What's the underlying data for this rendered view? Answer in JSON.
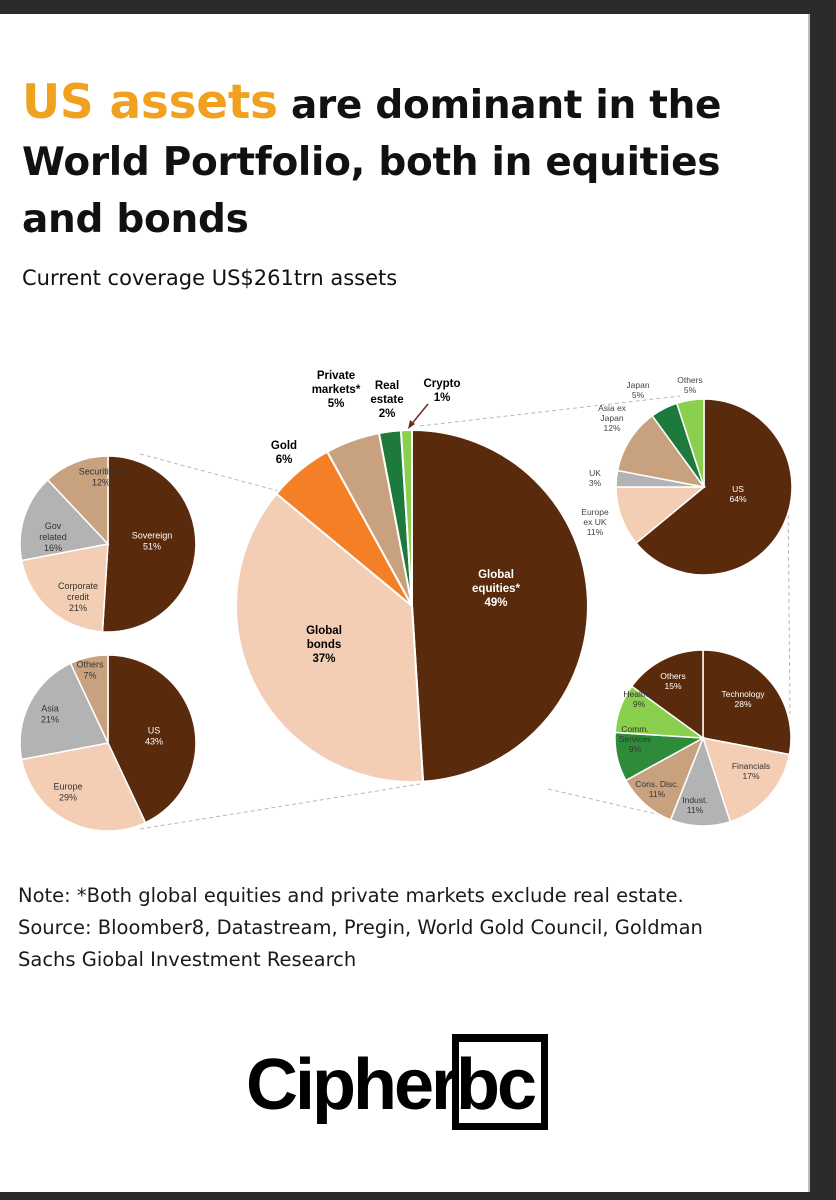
{
  "title": {
    "highlight": "US assets",
    "rest": " are dominant in the World Portfolio, both in equities and bonds"
  },
  "subtitle": "Current coverage US$261trn assets",
  "colors": {
    "accent": "#f0a11f",
    "dark_brown": "#5a2a0c",
    "light_peach": "#f3cdb4",
    "tan": "#c8a27f",
    "grey": "#b3b3b3",
    "orange": "#f47f27",
    "dark_green": "#1e7a3c",
    "light_green": "#8bcf4e",
    "mid_green": "#2e8b3a"
  },
  "chart_data": [
    {
      "type": "pie",
      "id": "main",
      "slices": [
        {
          "label": [
            "Global",
            "equities*"
          ],
          "value": 49,
          "value_label": "49%",
          "color": "#5a2a0c"
        },
        {
          "label": [
            "Global",
            "bonds"
          ],
          "value": 37,
          "value_label": "37%",
          "color": "#f3cdb4"
        },
        {
          "label": [
            "Gold"
          ],
          "value": 6,
          "value_label": "6%",
          "color": "#f47f27"
        },
        {
          "label": [
            "Private",
            "markets*"
          ],
          "value": 5,
          "value_label": "5%",
          "color": "#c8a27f"
        },
        {
          "label": [
            "Real",
            "estate"
          ],
          "value": 2,
          "value_label": "2%",
          "color": "#1e7a3c"
        },
        {
          "label": [
            "Crypto"
          ],
          "value": 1,
          "value_label": "1%",
          "color": "#8bcf4e"
        }
      ]
    },
    {
      "type": "pie",
      "id": "bonds-by-type",
      "slices": [
        {
          "label": [
            "Sovereign"
          ],
          "value": 51,
          "value_label": "51%",
          "color": "#5a2a0c"
        },
        {
          "label": [
            "Corporate",
            "credit"
          ],
          "value": 21,
          "value_label": "21%",
          "color": "#f3cdb4"
        },
        {
          "label": [
            "Gov",
            "related"
          ],
          "value": 16,
          "value_label": "16%",
          "color": "#b3b3b3"
        },
        {
          "label": [
            "Securitised"
          ],
          "value": 12,
          "value_label": "12%",
          "color": "#c8a27f"
        }
      ]
    },
    {
      "type": "pie",
      "id": "bonds-by-region",
      "slices": [
        {
          "label": [
            "US"
          ],
          "value": 43,
          "value_label": "43%",
          "color": "#5a2a0c"
        },
        {
          "label": [
            "Europe"
          ],
          "value": 29,
          "value_label": "29%",
          "color": "#f3cdb4"
        },
        {
          "label": [
            "Asia"
          ],
          "value": 21,
          "value_label": "21%",
          "color": "#b3b3b3"
        },
        {
          "label": [
            "Others"
          ],
          "value": 7,
          "value_label": "7%",
          "color": "#c8a27f"
        }
      ]
    },
    {
      "type": "pie",
      "id": "equities-by-region",
      "slices": [
        {
          "label": [
            "US"
          ],
          "value": 64,
          "value_label": "64%",
          "color": "#5a2a0c"
        },
        {
          "label": [
            "Europe",
            "ex UK"
          ],
          "value": 11,
          "value_label": "11%",
          "color": "#f3cdb4"
        },
        {
          "label": [
            "UK"
          ],
          "value": 3,
          "value_label": "3%",
          "color": "#b3b3b3"
        },
        {
          "label": [
            "Asia ex",
            "Japan"
          ],
          "value": 12,
          "value_label": "12%",
          "color": "#c8a27f"
        },
        {
          "label": [
            "Japan"
          ],
          "value": 5,
          "value_label": "5%",
          "color": "#1e7a3c"
        },
        {
          "label": [
            "Others"
          ],
          "value": 5,
          "value_label": "5%",
          "color": "#8bcf4e"
        }
      ]
    },
    {
      "type": "pie",
      "id": "equities-by-sector",
      "slices": [
        {
          "label": [
            "Technology"
          ],
          "value": 28,
          "value_label": "28%",
          "color": "#5a2a0c"
        },
        {
          "label": [
            "Financials"
          ],
          "value": 17,
          "value_label": "17%",
          "color": "#f3cdb4"
        },
        {
          "label": [
            "Indust."
          ],
          "value": 11,
          "value_label": "11%",
          "color": "#b3b3b3"
        },
        {
          "label": [
            "Cons. Disc."
          ],
          "value": 11,
          "value_label": "11%",
          "color": "#c8a27f"
        },
        {
          "label": [
            "Comm.",
            "Services"
          ],
          "value": 9,
          "value_label": "9%",
          "color": "#2e8b3a"
        },
        {
          "label": [
            "Healthc."
          ],
          "value": 9,
          "value_label": "9%",
          "color": "#8bcf4e"
        },
        {
          "label": [
            "Others"
          ],
          "value": 15,
          "value_label": "15%",
          "color": "#5a2a0c"
        }
      ]
    }
  ],
  "notes": {
    "line1": "Note: *Both global equities and private markets exclude real estate.",
    "line2": "Source: Bloomber8, Datastream, Pregin, World Gold Council, Goldman",
    "line3": "Sachs Giobal Investment Research"
  },
  "logo": {
    "text": "Cipherbc"
  }
}
